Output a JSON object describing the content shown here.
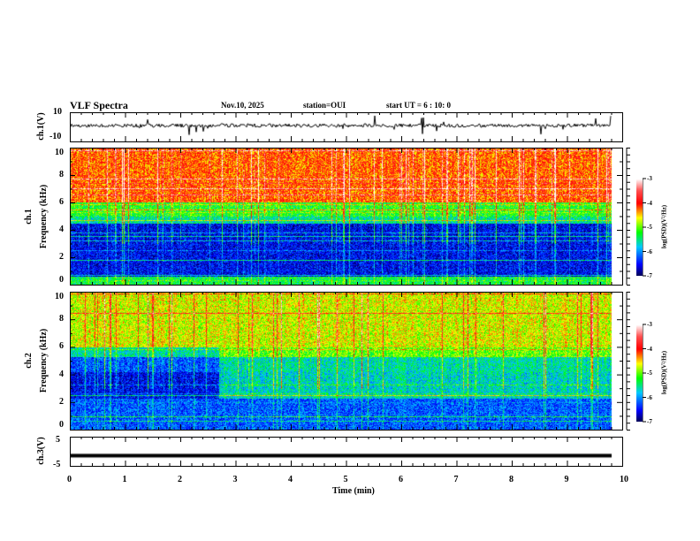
{
  "header": {
    "title": "VLF Spectra",
    "date": "Nov.10, 2025",
    "station": "station=OUI",
    "start": "start  UT =   6 : 10: 0"
  },
  "chart_data": [
    {
      "type": "line",
      "name": "ch1 waveform",
      "ylabel": "ch.1(V)",
      "ylim": [
        -10,
        10
      ],
      "yticks": [
        "10",
        "-10"
      ],
      "xlim": [
        0,
        10
      ],
      "data_end_min": 9.8
    },
    {
      "type": "heatmap",
      "name": "ch1 spectrogram",
      "ylabel": "ch.1\nFrequency (kHz)",
      "ylabel_ch": "ch.1",
      "ylabel_f": "Frequency (kHz)",
      "ylim": [
        0,
        10
      ],
      "yticks": [
        "0",
        "2",
        "4",
        "6",
        "8",
        "10"
      ],
      "colorbar": {
        "label": "log(PSD)(V²/Hz)",
        "range": [
          -7,
          -3
        ],
        "ticks": [
          "-3",
          "-4",
          "-5",
          "-6",
          "-7"
        ]
      }
    },
    {
      "type": "heatmap",
      "name": "ch2 spectrogram",
      "ylabel_ch": "ch.2",
      "ylabel_f": "Frequency (kHz)",
      "ylim": [
        0,
        10
      ],
      "yticks": [
        "0",
        "2",
        "4",
        "6",
        "8",
        "10"
      ],
      "colorbar": {
        "label": "log(PSD)(V²/Hz)",
        "range": [
          -7,
          -3
        ],
        "ticks": [
          "-3",
          "-4",
          "-5",
          "-6",
          "-7"
        ]
      }
    },
    {
      "type": "line",
      "name": "ch3 waveform",
      "ylabel": "ch.3(V)",
      "ylim": [
        -5,
        5
      ],
      "yticks": [
        "5",
        "-5"
      ],
      "constant_value": -1.5
    },
    {
      "xlabel": "Time  (min)",
      "xticks": [
        "0",
        "1",
        "2",
        "3",
        "4",
        "5",
        "6",
        "7",
        "8",
        "9",
        "10"
      ]
    }
  ]
}
